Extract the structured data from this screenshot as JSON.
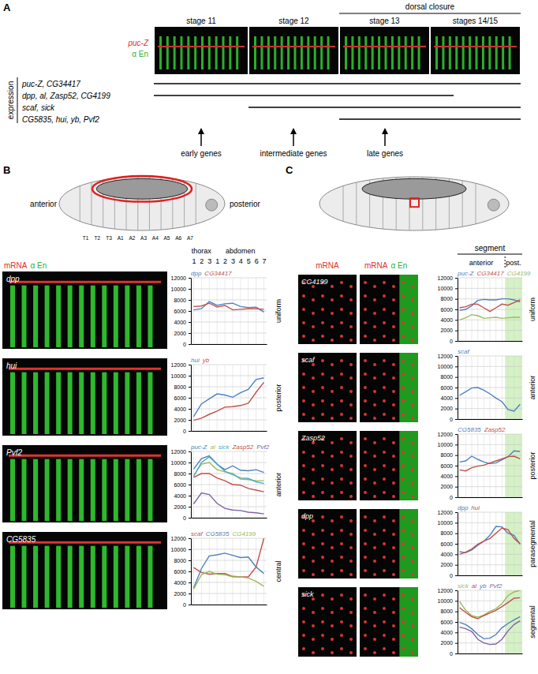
{
  "figure": {
    "panel_a": {
      "label": "A",
      "image_labels": [
        "puc-Z",
        "α En"
      ],
      "stages": [
        "stage 11",
        "stage 12",
        "stage 13",
        "stages 14/15"
      ],
      "dorsal_closure": "dorsal closure",
      "expression_label": "expression",
      "gene_groups": [
        "puc-Z, CG34417",
        "dpp, al, Zasp52, CG4199",
        "scaf, sick",
        "CG5835, hui, yb, Pvf2"
      ],
      "arrows": [
        "early genes",
        "intermediate genes",
        "late genes"
      ]
    },
    "panel_b": {
      "label": "B",
      "anterior": "anterior",
      "posterior": "posterior",
      "segments": [
        "T1",
        "T2",
        "T3",
        "A1",
        "A2",
        "A3",
        "A4",
        "A5",
        "A6",
        "A7"
      ],
      "header": [
        "mRNA",
        "α En"
      ],
      "regions": [
        "thorax",
        "abdomen"
      ],
      "images": [
        "dpp",
        "hui",
        "Pvf2",
        "CG5835"
      ]
    },
    "panel_c": {
      "label": "C",
      "header_mrna": "mRNA",
      "header_merge": [
        "mRNA",
        "α En"
      ],
      "segment": "segment",
      "regions": [
        "anterior",
        "post."
      ],
      "images": [
        "CG4199",
        "scaf",
        "Zasp52",
        "dpp",
        "sick"
      ]
    }
  },
  "chart_data": [
    {
      "type": "line",
      "title": "uniform",
      "categories": [
        "1",
        "2",
        "3",
        "1",
        "2",
        "3",
        "4",
        "5",
        "6",
        "7"
      ],
      "ylim": [
        0,
        12000
      ],
      "yticks": [
        0,
        2000,
        4000,
        6000,
        8000,
        10000,
        12000
      ],
      "grid": true,
      "legend": "top-left",
      "series": [
        {
          "name": "dpp",
          "color": "#4F81BD",
          "values": [
            6200,
            6400,
            7700,
            7000,
            7300,
            7400,
            6800,
            6600,
            6700,
            5800
          ]
        },
        {
          "name": "CG34417",
          "color": "#C0504D",
          "values": [
            6800,
            6900,
            7400,
            6700,
            7000,
            6200,
            6300,
            6400,
            6400,
            6300
          ]
        }
      ]
    },
    {
      "type": "line",
      "title": "posterior",
      "categories": [
        null,
        null,
        null,
        null,
        null,
        null,
        null,
        null,
        null,
        null
      ],
      "ylim": [
        0,
        12000
      ],
      "yticks": [
        0,
        2000,
        4000,
        6000,
        8000,
        10000,
        12000
      ],
      "grid": true,
      "legend": "top-left",
      "tick_labels": "y",
      "series": [
        {
          "name": "hui",
          "color": "#4F81BD",
          "values": [
            2600,
            4900,
            5800,
            6700,
            6500,
            6100,
            6900,
            7500,
            9300,
            9600
          ]
        },
        {
          "name": "yb",
          "color": "#C0504D",
          "values": [
            1900,
            2300,
            3000,
            3600,
            4300,
            4400,
            4600,
            5000,
            7000,
            8800
          ]
        }
      ]
    },
    {
      "type": "line",
      "title": "anterior",
      "categories": [
        null,
        null,
        null,
        null,
        null,
        null,
        null,
        null,
        null,
        null
      ],
      "ylim": [
        0,
        12000
      ],
      "yticks": [
        0,
        2000,
        4000,
        6000,
        8000,
        10000,
        12000
      ],
      "grid": true,
      "legend": "top-left",
      "tick_labels": "y",
      "series": [
        {
          "name": "puc-Z",
          "color": "#4F81BD",
          "values": [
            8800,
            10700,
            11200,
            9700,
            8700,
            9400,
            8600,
            8500,
            8700,
            8200
          ]
        },
        {
          "name": "al",
          "color": "#9BBB59",
          "values": [
            7600,
            9700,
            10000,
            8700,
            8300,
            8000,
            7000,
            6900,
            6700,
            6700
          ]
        },
        {
          "name": "sick",
          "color": "#4BACC6",
          "values": [
            7500,
            10000,
            11000,
            9700,
            8400,
            7800,
            7200,
            7100,
            6500,
            6200
          ]
        },
        {
          "name": "Zasp52",
          "color": "#C0504D",
          "values": [
            7300,
            8000,
            8000,
            7200,
            6700,
            6000,
            5900,
            5300,
            5000,
            4700
          ]
        },
        {
          "name": "Pvf2",
          "color": "#8064A2",
          "values": [
            2500,
            4500,
            4200,
            2600,
            1700,
            1400,
            1300,
            1000,
            900,
            700
          ]
        }
      ]
    },
    {
      "type": "line",
      "title": "central",
      "categories": [
        null,
        null,
        null,
        null,
        null,
        null,
        null,
        null,
        null,
        null
      ],
      "ylim": [
        0,
        12000
      ],
      "yticks": [
        0,
        2000,
        4000,
        6000,
        8000,
        10000,
        12000
      ],
      "grid": true,
      "legend": "top-left",
      "tick_labels": "y",
      "series": [
        {
          "name": "scaf",
          "color": "#C0504D",
          "values": [
            6700,
            5800,
            5500,
            5600,
            5600,
            5100,
            5000,
            5000,
            6800,
            12000
          ]
        },
        {
          "name": "CG5835",
          "color": "#4F81BD",
          "values": [
            3000,
            6500,
            8800,
            9000,
            9300,
            8900,
            8500,
            8600,
            6800,
            5600
          ]
        },
        {
          "name": "CG4199",
          "color": "#9BBB59",
          "values": [
            2800,
            5400,
            6000,
            5500,
            5400,
            5000,
            5000,
            4800,
            4200,
            3300
          ]
        }
      ]
    },
    {
      "type": "line",
      "title": "uniform",
      "categories": [
        null,
        null,
        null,
        null,
        null,
        null,
        null,
        null,
        null,
        null,
        null
      ],
      "ylim": [
        0,
        12000
      ],
      "yticks": [
        0,
        2000,
        4000,
        6000,
        8000,
        10000,
        12000
      ],
      "grid": true,
      "legend": "top-left",
      "tick_labels": "y",
      "series": [
        {
          "name": "puc-Z",
          "color": "#4F81BD",
          "values": [
            5800,
            6000,
            6700,
            7700,
            7900,
            7800,
            7800,
            8000,
            8000,
            7800,
            7400
          ]
        },
        {
          "name": "CG34417",
          "color": "#C0504D",
          "values": [
            6300,
            6500,
            7000,
            7000,
            6300,
            5600,
            6300,
            7000,
            6800,
            7300,
            7800
          ]
        },
        {
          "name": "CG4199",
          "color": "#9BBB59",
          "values": [
            4000,
            4400,
            5000,
            4800,
            4300,
            4400,
            4500,
            4300,
            4400,
            4500,
            4500
          ]
        }
      ]
    },
    {
      "type": "line",
      "title": "anterior",
      "categories": [
        null,
        null,
        null,
        null,
        null,
        null,
        null,
        null,
        null,
        null,
        null
      ],
      "ylim": [
        0,
        12000
      ],
      "yticks": [
        0,
        2000,
        4000,
        6000,
        8000,
        10000,
        12000
      ],
      "grid": true,
      "legend": "top-left",
      "tick_labels": "y",
      "series": [
        {
          "name": "scaf",
          "color": "#4F81BD",
          "values": [
            4500,
            5200,
            5900,
            6000,
            5500,
            4800,
            4000,
            3300,
            1800,
            1500,
            2800
          ]
        }
      ]
    },
    {
      "type": "line",
      "title": "posterior",
      "categories": [
        null,
        null,
        null,
        null,
        null,
        null,
        null,
        null,
        null,
        null,
        null
      ],
      "ylim": [
        0,
        12000
      ],
      "yticks": [
        0,
        2000,
        4000,
        6000,
        8000,
        10000,
        12000
      ],
      "grid": true,
      "legend": "top-left",
      "tick_labels": "y",
      "series": [
        {
          "name": "CG5835",
          "color": "#4F81BD",
          "values": [
            6700,
            6900,
            7800,
            7200,
            6700,
            6400,
            6500,
            7100,
            7700,
            8800,
            8700
          ]
        },
        {
          "name": "Zasp52",
          "color": "#C0504D",
          "values": [
            5200,
            5000,
            5600,
            5900,
            6100,
            6500,
            6900,
            7300,
            7700,
            7800,
            7300
          ]
        }
      ]
    },
    {
      "type": "line",
      "title": "parasegmental",
      "categories": [
        null,
        null,
        null,
        null,
        null,
        null,
        null,
        null,
        null,
        null,
        null
      ],
      "ylim": [
        0,
        12000
      ],
      "yticks": [
        0,
        2000,
        4000,
        6000,
        8000,
        10000,
        12000
      ],
      "grid": true,
      "legend": "top-left",
      "tick_labels": "y",
      "series": [
        {
          "name": "dpp",
          "color": "#4F81BD",
          "values": [
            4500,
            4300,
            4800,
            5700,
            6500,
            7600,
            9300,
            9200,
            8000,
            7600,
            5900
          ]
        },
        {
          "name": "hui",
          "color": "#C0504D",
          "values": [
            4000,
            4400,
            5000,
            5900,
            6500,
            7000,
            8000,
            9000,
            8700,
            7000,
            6000
          ]
        }
      ]
    },
    {
      "type": "line",
      "title": "segmental",
      "categories": [
        null,
        null,
        null,
        null,
        null,
        null,
        null,
        null,
        null,
        null,
        null
      ],
      "ylim": [
        0,
        12000
      ],
      "yticks": [
        0,
        2000,
        4000,
        6000,
        8000,
        10000,
        12000
      ],
      "grid": true,
      "legend": "top-left",
      "tick_labels": "y",
      "series": [
        {
          "name": "sick",
          "color": "#9BBB59",
          "values": [
            9900,
            8200,
            7200,
            6900,
            7300,
            8000,
            8500,
            9500,
            11000,
            11700,
            12000
          ]
        },
        {
          "name": "al",
          "color": "#C0504D",
          "values": [
            8700,
            7800,
            7000,
            6600,
            7200,
            7700,
            8200,
            8900,
            9700,
            10500,
            10600
          ]
        },
        {
          "name": "yb",
          "color": "#4F81BD",
          "values": [
            5900,
            5500,
            4700,
            3600,
            2800,
            2900,
            3600,
            4900,
            5700,
            6400,
            7000
          ]
        },
        {
          "name": "Pvf2",
          "color": "#8064A2",
          "values": [
            5000,
            4700,
            4200,
            2700,
            2000,
            1700,
            1800,
            2700,
            4300,
            5500,
            6200
          ]
        }
      ]
    }
  ]
}
